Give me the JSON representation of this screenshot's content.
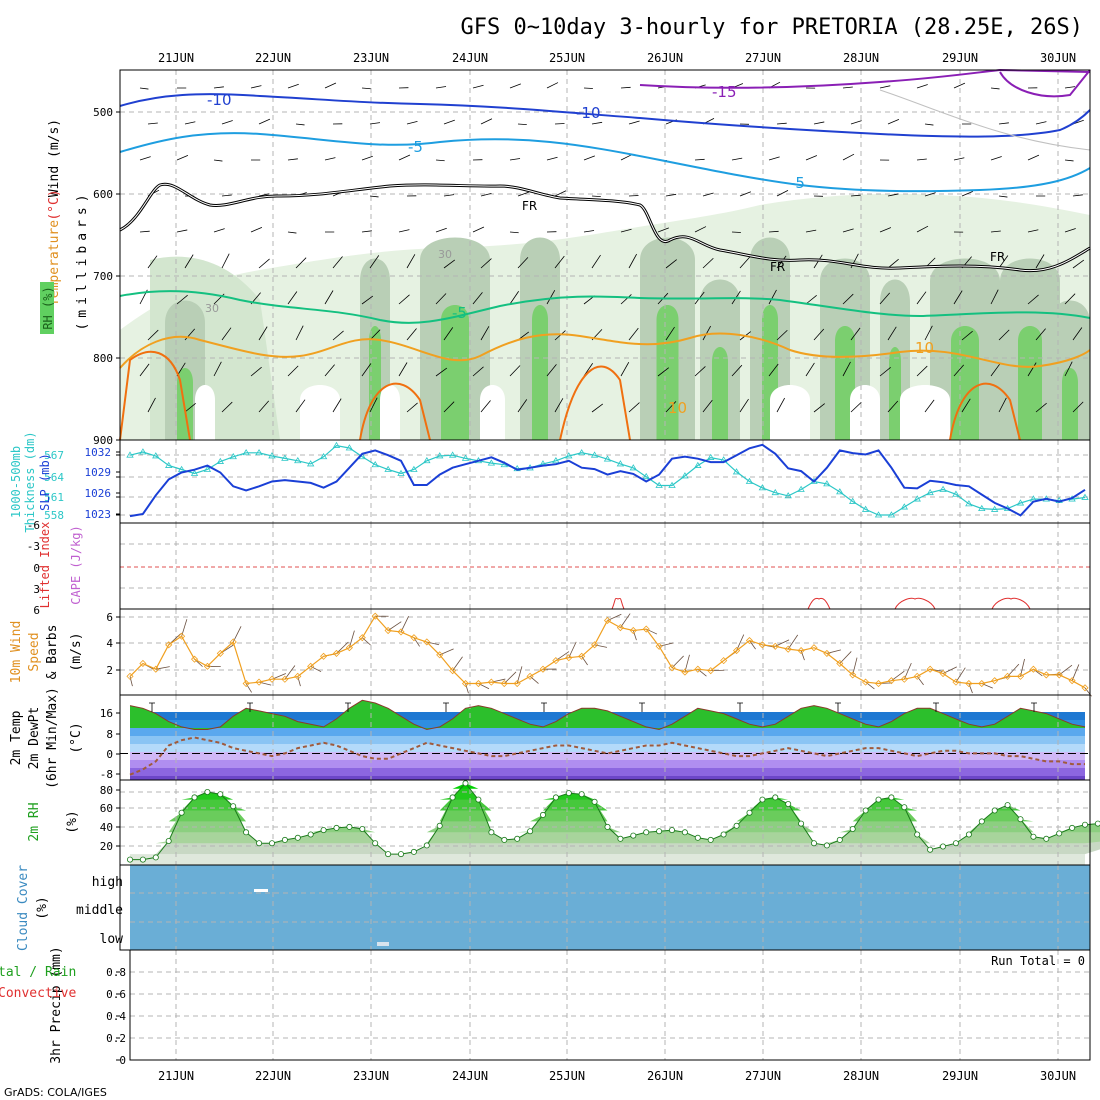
{
  "title": "GFS 0~10day 3-hourly for PRETORIA (28.25E, 26S)",
  "credit": "GrADS: COLA/IGES",
  "days": [
    "21JUN",
    "22JUN",
    "23JUN",
    "24JUN",
    "25JUN",
    "26JUN",
    "27JUN",
    "28JUN",
    "29JUN",
    "30JUN"
  ],
  "colors": {
    "grid": "#b4b4b4",
    "temp_minus15": "#8a1fb5",
    "temp_minus10": "#2040d0",
    "temp_minus5_upper": "#1e9ee0",
    "temp_minus5_lower": "#14c080",
    "temp_10": "#f0a020",
    "temp_15": "#f07010",
    "freezing": "#000000",
    "slp": "#1a3fd6",
    "thickness": "#2cc7c7",
    "wind10": "#f0a020",
    "cloud": "#6aaed6",
    "rh_green": "#32c832",
    "dewpoint": "#a05a3c"
  },
  "panels": {
    "upper": {
      "label_temp": "Temperature",
      "label_temp_unit": "(°C)",
      "label_wind": "Wind (m/s)",
      "label_rh": "RH (%)",
      "label_millibars": "(millibars)",
      "y_ticks": [
        "500",
        "600",
        "700",
        "800",
        "900"
      ],
      "contour_labels": [
        "-10",
        "-10",
        "-15",
        "-5",
        "-5",
        "-5",
        "10",
        "10",
        "30",
        "30",
        "FR",
        "FR",
        "FR"
      ]
    },
    "thickness": {
      "label_left": "1000-500mb",
      "label_left2": "Thickness (dm)",
      "label_right": "SLP (mb)",
      "ticks_left": [
        "567",
        "564",
        "561",
        "558"
      ],
      "ticks_right": [
        "1032",
        "1029",
        "1026",
        "1023"
      ]
    },
    "lifted": {
      "label_red": "Lifted Index",
      "label_purple": "CAPE (J/kg)",
      "ticks": [
        "-6",
        "-3",
        "0",
        "3",
        "6"
      ]
    },
    "wind10": {
      "label1": "10m Wind",
      "label2": "Speed",
      "label3": "& Barbs",
      "label4": "(m/s)",
      "ticks": [
        "6",
        "4",
        "2"
      ]
    },
    "temp2m": {
      "label1": "2m Temp",
      "label2": "2m DewPt",
      "label3": "(6hr Min/Max)",
      "label4": "(°C)",
      "ticks": [
        "16",
        "8",
        "0",
        "-8"
      ]
    },
    "rh2m": {
      "label1": "2m RH",
      "label2": "(%)",
      "ticks": [
        "80",
        "60",
        "40",
        "20"
      ]
    },
    "cloud": {
      "label1": "Cloud Cover",
      "label2": "(%)",
      "levels": [
        "high",
        "middle",
        "low"
      ]
    },
    "precip": {
      "label1": "3hr Precip (mm)",
      "label_total": "tal / Rain",
      "label_conv": "Convective",
      "run_total": "Run Total = 0",
      "ticks": [
        "0.8",
        "0.6",
        "0.4",
        "0.2",
        "0"
      ]
    }
  },
  "chart_data": [
    {
      "type": "line",
      "title": "1000-500mb Thickness (dm) / SLP (mb)",
      "x_unit": "hours from 20JUN 18Z (3-hourly)",
      "series": [
        {
          "name": "SLP (mb)",
          "ylim": [
            1021.5,
            1033.5
          ],
          "values": [
            1022.5,
            1022.8,
            1025.5,
            1027.8,
            1028.8,
            1029.2,
            1029.8,
            1028.8,
            1026.8,
            1026.2,
            1026.8,
            1027.5,
            1027.7,
            1027.5,
            1027.3,
            1026.6,
            1027.5,
            1029.5,
            1031.5,
            1032,
            1031.3,
            1030.5,
            1027,
            1027,
            1028.5,
            1029.5,
            1030,
            1030.5,
            1031,
            1030.2,
            1029.2,
            1029.5,
            1029.8,
            1030,
            1030.5,
            1029.5,
            1029.3,
            1028.5,
            1029,
            1028.6,
            1027.5,
            1028.5,
            1030.8,
            1031.1,
            1030.8,
            1030.3,
            1030.3,
            1031.3,
            1032.3,
            1032.8,
            1031.5,
            1029.4,
            1029,
            1027.5,
            1029.5,
            1032,
            1031.6,
            1031.4,
            1032,
            1029.5,
            1026.6,
            1026.5,
            1027.6,
            1027.4,
            1027,
            1026.8,
            1025.6,
            1024.4,
            1023.6,
            1022.6,
            1024.6,
            1025,
            1024.6,
            1025.1,
            1026.3
          ]
        },
        {
          "name": "1000-500mb Thickness (dm)",
          "ylim": [
            557.8,
            568.2
          ],
          "values": [
            566.3,
            566.7,
            566.2,
            565,
            564.5,
            564,
            564.5,
            565.5,
            566.1,
            566.6,
            566.6,
            566.2,
            565.9,
            565.6,
            565.2,
            566.1,
            567.5,
            567.2,
            566.1,
            565.1,
            564.5,
            564,
            564.5,
            565.6,
            566.2,
            566.3,
            565.9,
            565.6,
            565.3,
            565.1,
            564.6,
            564.7,
            565.2,
            565.6,
            566.2,
            566.6,
            566.3,
            565.8,
            565.2,
            564.7,
            563.6,
            562.5,
            562.5,
            563.7,
            565,
            566,
            565.7,
            564.2,
            563,
            562.2,
            561.6,
            561.2,
            562,
            563,
            562.7,
            561.7,
            560.5,
            559.5,
            558.8,
            558.8,
            559.8,
            560.8,
            561.6,
            562,
            561.4,
            560.2,
            559.6,
            559.5,
            559.6,
            560.3,
            560.8,
            560.8,
            560.6,
            560.8,
            561
          ]
        }
      ]
    },
    {
      "type": "line",
      "title": "10m Wind Speed & Barbs (m/s)",
      "ylim": [
        0.5,
        6.5
      ],
      "values": [
        1.8,
        2.7,
        2.3,
        4.0,
        4.6,
        3.0,
        2.5,
        3.4,
        4.2,
        1.3,
        1.4,
        1.6,
        1.6,
        1.8,
        2.5,
        3.2,
        3.4,
        3.8,
        4.5,
        6.0,
        5.0,
        4.9,
        4.5,
        4.2,
        3.3,
        2.2,
        1.3,
        1.3,
        1.4,
        1.3,
        1.3,
        1.8,
        2.3,
        2.9,
        3.1,
        3.2,
        4.0,
        5.7,
        5.2,
        5.0,
        5.1,
        3.9,
        2.4,
        2.1,
        2.3,
        2.2,
        2.9,
        3.6,
        4.3,
        4.0,
        3.9,
        3.7,
        3.6,
        3.8,
        3.4,
        2.7,
        1.9,
        1.4,
        1.3,
        1.5,
        1.6,
        1.8,
        2.3,
        2.0,
        1.4,
        1.3,
        1.3,
        1.5,
        1.8,
        1.8,
        2.3,
        1.9,
        1.9,
        1.5,
        1.0
      ]
    },
    {
      "type": "area",
      "title": "2m Temp / 2m DewPt (°C)",
      "ylim": [
        -10,
        22
      ],
      "series": [
        {
          "name": "2m Temp",
          "values": [
            18,
            17,
            15,
            12,
            10,
            9,
            9,
            10,
            14,
            17,
            16,
            15,
            14,
            12,
            11,
            10,
            13,
            17,
            20,
            19,
            17,
            14,
            11,
            9,
            10,
            13,
            17,
            18,
            17,
            15,
            13,
            11,
            10,
            12,
            15,
            17,
            17,
            16,
            14,
            12,
            10,
            9,
            11,
            14,
            17,
            16,
            15,
            13,
            11,
            10,
            11,
            14,
            17,
            18,
            17,
            15,
            13,
            11,
            10,
            12,
            15,
            17,
            17,
            15,
            13,
            11,
            10,
            11,
            14,
            17,
            16,
            15,
            13,
            11,
            10
          ]
        },
        {
          "name": "2m DewPt",
          "values": [
            -8,
            -6,
            -3,
            3,
            5,
            6,
            5,
            4,
            2,
            1,
            0,
            -1,
            0,
            2,
            3,
            4,
            3,
            1,
            -1,
            -2,
            -2,
            0,
            2,
            4,
            3,
            2,
            1,
            0,
            -1,
            -1,
            0,
            1,
            2,
            3,
            3,
            2,
            1,
            0,
            1,
            2,
            3,
            3,
            4,
            3,
            2,
            1,
            0,
            -1,
            -1,
            0,
            1,
            2,
            1,
            0,
            -1,
            0,
            1,
            2,
            2,
            1,
            0,
            -1,
            0,
            1,
            1,
            0,
            0,
            0,
            -1,
            -1,
            -2,
            -3,
            -3,
            -4,
            -4
          ]
        }
      ]
    },
    {
      "type": "area",
      "title": "2m RH (%)",
      "ylim": [
        10,
        88
      ],
      "values": [
        15,
        15,
        17,
        32,
        58,
        72,
        77,
        75,
        64,
        40,
        30,
        30,
        33,
        35,
        38,
        42,
        44,
        45,
        43,
        30,
        20,
        20,
        22,
        28,
        46,
        72,
        85,
        70,
        40,
        33,
        34,
        41,
        56,
        72,
        76,
        75,
        68,
        45,
        34,
        37,
        40,
        41,
        42,
        40,
        35,
        33,
        38,
        46,
        58,
        70,
        72,
        66,
        48,
        30,
        28,
        33,
        43,
        60,
        70,
        72,
        63,
        38,
        24,
        27,
        30,
        38,
        50,
        60,
        65,
        52,
        36,
        34,
        39,
        44,
        47,
        48,
        47,
        36,
        35
      ]
    },
    {
      "type": "line",
      "title": "3hr Precip (mm)",
      "ylim": [
        0,
        1
      ],
      "values": [
        0,
        0,
        0,
        0,
        0,
        0,
        0,
        0,
        0,
        0
      ]
    }
  ]
}
